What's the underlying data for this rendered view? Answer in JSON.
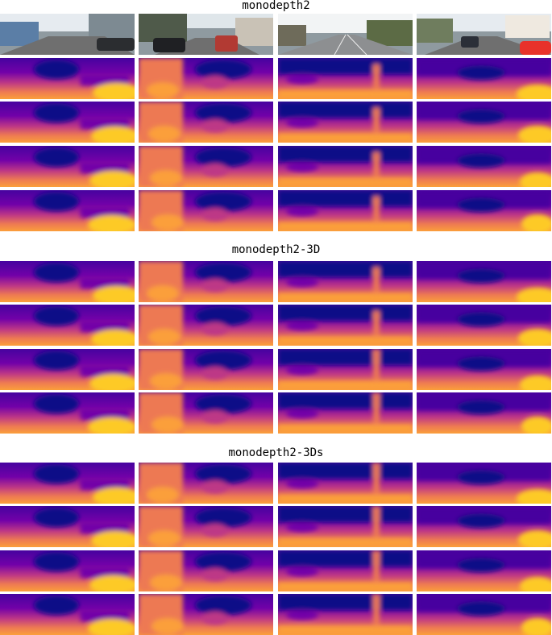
{
  "sections": [
    {
      "title": "monodepth2"
    },
    {
      "title": "monodepth2-3D"
    },
    {
      "title": "monodepth2-3Ds"
    }
  ],
  "colors": {
    "plasma": [
      "#0d0887",
      "#46039f",
      "#7201a8",
      "#9c179e",
      "#bd3786",
      "#d8576b",
      "#ed7953",
      "#fb9f3a",
      "#fdca26",
      "#f0f921"
    ],
    "sky": "#e6ebf0",
    "road": "#6f6f6f"
  },
  "scenes": [
    {
      "name": "scene-1",
      "photo_icon": "street-photo-icon"
    },
    {
      "name": "scene-2",
      "photo_icon": "street-photo-icon"
    },
    {
      "name": "scene-3",
      "photo_icon": "street-photo-icon"
    },
    {
      "name": "scene-4",
      "photo_icon": "street-photo-icon"
    }
  ]
}
